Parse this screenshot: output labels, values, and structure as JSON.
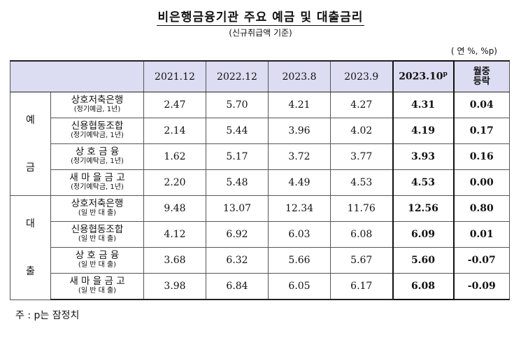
{
  "title": "비은행금융기관 주요 예금 및 대출금리",
  "subtitle": "(신규취급액 기준)",
  "unit": "( 연 %, %p)",
  "columns": {
    "c1": "2021.12",
    "c2": "2022.12",
    "c3": "2023.8",
    "c4": "2023.9",
    "c5": "2023.10",
    "c5_sup": "p",
    "change_line1": "월중",
    "change_line2": "등락"
  },
  "groups": {
    "deposit": "예\n\n금",
    "loan": "대\n\n출"
  },
  "rows": [
    {
      "name": "상호저축은행",
      "sub": "(정기예금, 1년)",
      "v1": "2.47",
      "v2": "5.70",
      "v3": "4.21",
      "v4": "4.27",
      "v5": "4.31",
      "chg": "0.04"
    },
    {
      "name": "신용협동조합",
      "sub": "(정기예탁금, 1년)",
      "v1": "2.14",
      "v2": "5.44",
      "v3": "3.96",
      "v4": "4.02",
      "v5": "4.19",
      "chg": "0.17"
    },
    {
      "name": "상 호 금 융",
      "sub": "(정기예탁금, 1년)",
      "v1": "1.62",
      "v2": "5.17",
      "v3": "3.72",
      "v4": "3.77",
      "v5": "3.93",
      "chg": "0.16"
    },
    {
      "name": "새 마 을 금 고",
      "sub": "(정기예탁금, 1년)",
      "v1": "2.20",
      "v2": "5.48",
      "v3": "4.49",
      "v4": "4.53",
      "v5": "4.53",
      "chg": "0.00"
    },
    {
      "name": "상호저축은행",
      "sub": "(일 반 대 출)",
      "v1": "9.48",
      "v2": "13.07",
      "v3": "12.34",
      "v4": "11.76",
      "v5": "12.56",
      "chg": "0.80"
    },
    {
      "name": "신용협동조합",
      "sub": "(일 반 대 출)",
      "v1": "4.12",
      "v2": "6.92",
      "v3": "6.03",
      "v4": "6.08",
      "v5": "6.09",
      "chg": "0.01"
    },
    {
      "name": "상 호 금 융",
      "sub": "(일 반 대 출)",
      "v1": "3.68",
      "v2": "6.32",
      "v3": "5.66",
      "v4": "5.67",
      "v5": "5.60",
      "chg": "-0.07"
    },
    {
      "name": "새 마 을 금 고",
      "sub": "(일 반 대 출)",
      "v1": "3.98",
      "v2": "6.84",
      "v3": "6.05",
      "v4": "6.17",
      "v5": "6.08",
      "chg": "-0.09"
    }
  ],
  "note": "주 : p는 잠정치"
}
